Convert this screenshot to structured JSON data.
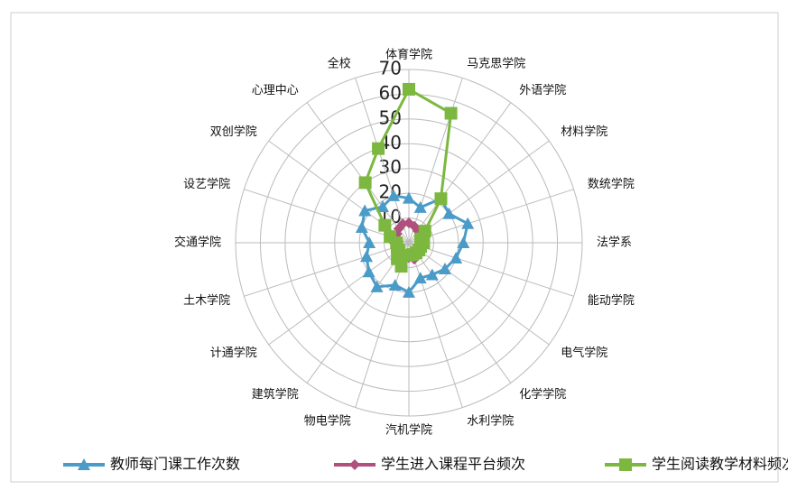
{
  "chart_data": {
    "type": "radar",
    "categories": [
      "体育学院",
      "马克思学院",
      "外语学院",
      "材料学院",
      "数统学院",
      "法学系",
      "能动学院",
      "电气学院",
      "化学学院",
      "水利学院",
      "汽机学院",
      "物电学院",
      "建筑学院",
      "计通学院",
      "土木学院",
      "交通学院",
      "设艺学院",
      "双创学院",
      "心理中心",
      "全校"
    ],
    "rlim": [
      0,
      70
    ],
    "rticks": [
      0,
      10,
      20,
      30,
      40,
      50,
      60,
      70
    ],
    "grid": true,
    "series": [
      {
        "name": "教师每门课工作次数",
        "color": "#4b9bc8",
        "marker": "triangle",
        "values": [
          18,
          15,
          22,
          20,
          25,
          22,
          20,
          18,
          16,
          15,
          20,
          18,
          22,
          20,
          18,
          16,
          20,
          22,
          18,
          20
        ]
      },
      {
        "name": "学生进入课程平台频次",
        "color": "#b0507e",
        "marker": "diamond",
        "values": [
          8,
          7,
          6,
          7,
          6,
          5,
          6,
          5,
          6,
          7,
          6,
          8,
          7,
          6,
          5,
          6,
          7,
          6,
          7,
          8
        ]
      },
      {
        "name": "学生阅读教学材料频次",
        "color": "#7cb83f",
        "marker": "square",
        "values": [
          62,
          55,
          22,
          8,
          5,
          6,
          5,
          5,
          5,
          5,
          5,
          10,
          8,
          5,
          5,
          5,
          8,
          12,
          30,
          40
        ]
      }
    ]
  }
}
